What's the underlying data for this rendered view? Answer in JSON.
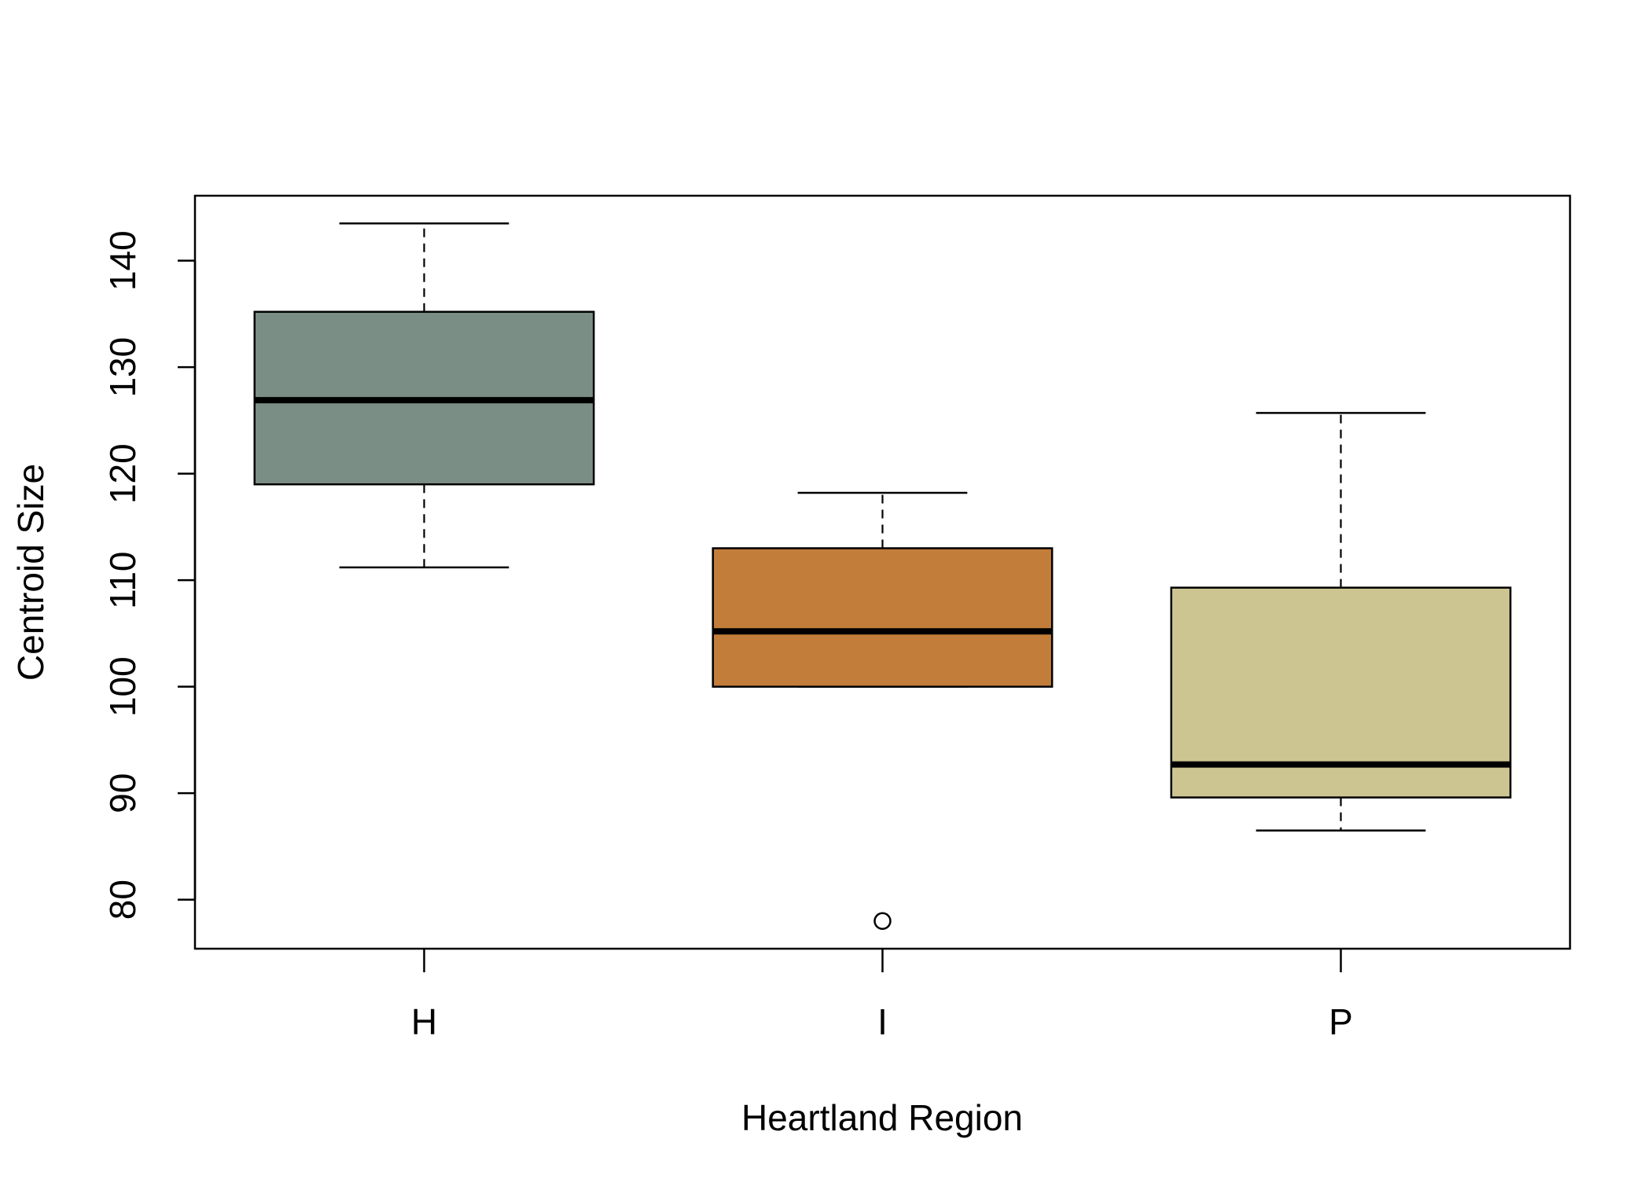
{
  "chart_data": {
    "type": "box",
    "title": "",
    "xlabel": "Heartland Region",
    "ylabel": "Centroid Size",
    "ylim": [
      75.4,
      146.1
    ],
    "yticks": [
      80,
      90,
      100,
      110,
      120,
      130,
      140
    ],
    "grid": false,
    "legend": "none",
    "categories": [
      "H",
      "I",
      "P"
    ],
    "boxes": [
      {
        "category": "H",
        "whisker_low": 111.2,
        "q1": 119.0,
        "median": 126.9,
        "q3": 135.2,
        "whisker_high": 143.5,
        "outliers": [],
        "color": "#7a8e85"
      },
      {
        "category": "I",
        "whisker_low": 100.0,
        "q1": 100.0,
        "median": 105.2,
        "q3": 113.0,
        "whisker_high": 118.2,
        "outliers": [
          78.0
        ],
        "color": "#c27d3a"
      },
      {
        "category": "P",
        "whisker_low": 86.5,
        "q1": 89.6,
        "median": 92.7,
        "q3": 109.3,
        "whisker_high": 125.7,
        "outliers": [],
        "color": "#cdc591"
      }
    ]
  }
}
